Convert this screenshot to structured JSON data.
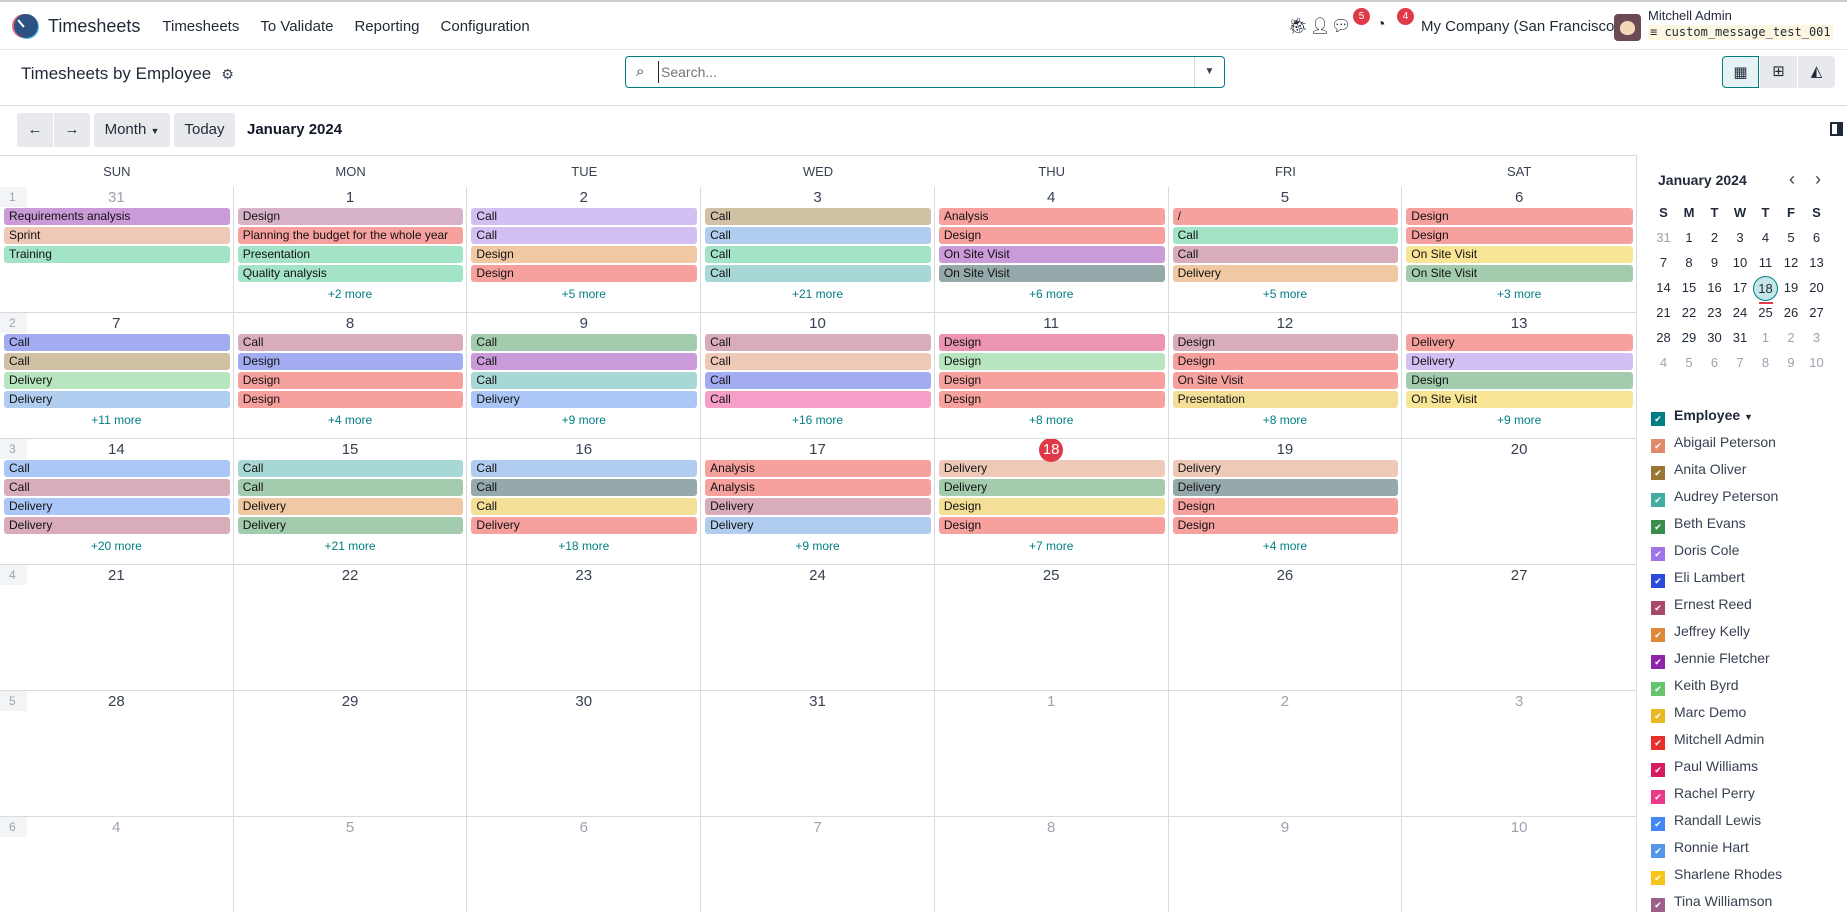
{
  "nav": {
    "brand": "Timesheets",
    "menu": [
      "Timesheets",
      "To Validate",
      "Reporting",
      "Configuration"
    ],
    "messages_badge": "5",
    "activity_badge": "4",
    "company": "My Company (San Francisco)",
    "user": "Mitchell Admin",
    "database": "custom_message_test_001"
  },
  "control": {
    "title": "Timesheets by Employee",
    "search_placeholder": "Search...",
    "views": [
      "calendar-icon",
      "pivot-icon",
      "graph-icon"
    ],
    "active_view": "calendar"
  },
  "toolbar": {
    "prev": "←",
    "next": "→",
    "scale": "Month",
    "today": "Today",
    "range": "January 2024"
  },
  "calendar": {
    "day_names": [
      "SUN",
      "MON",
      "TUE",
      "WED",
      "THU",
      "FRI",
      "SAT"
    ],
    "today": "18",
    "weeks": [
      {
        "num": "1",
        "days": [
          {
            "d": "31",
            "other": true,
            "events": [
              [
                "Requirements analysis",
                "#cb9ad8"
              ],
              [
                "Sprint",
                "#efc9b8"
              ],
              [
                "Training",
                "#a3e4c7"
              ]
            ],
            "more": ""
          },
          {
            "d": "1",
            "events": [
              [
                "Design",
                "#d7b3c7"
              ],
              [
                "Planning the budget for the whole year",
                "#f7a19f"
              ],
              [
                "Presentation",
                "#a3e4c7"
              ],
              [
                "Quality analysis",
                "#a3e4c7"
              ]
            ],
            "more": "+2 more"
          },
          {
            "d": "2",
            "events": [
              [
                "Call",
                "#d2c0f2"
              ],
              [
                "Call",
                "#d2c0f2"
              ],
              [
                "Design",
                "#f0c8a3"
              ],
              [
                "Design",
                "#f7a19f"
              ]
            ],
            "more": "+5 more"
          },
          {
            "d": "3",
            "events": [
              [
                "Call",
                "#d0c0a4"
              ],
              [
                "Call",
                "#b0cdef"
              ],
              [
                "Call",
                "#a3e4c7"
              ],
              [
                "Call",
                "#a8d8d5"
              ]
            ],
            "more": "+21 more"
          },
          {
            "d": "4",
            "events": [
              [
                "Analysis",
                "#f7a19f"
              ],
              [
                "Design",
                "#f7a19f"
              ],
              [
                "On Site Visit",
                "#cb9ad8"
              ],
              [
                "On Site Visit",
                "#95a8aa"
              ]
            ],
            "more": "+6 more"
          },
          {
            "d": "5",
            "events": [
              [
                "/",
                "#f7a19f"
              ],
              [
                "Call",
                "#a3e4c7"
              ],
              [
                "Call",
                "#d8adb9"
              ],
              [
                "Delivery",
                "#f0c8a3"
              ]
            ],
            "more": "+5 more"
          },
          {
            "d": "6",
            "events": [
              [
                "Design",
                "#f7a19f"
              ],
              [
                "Design",
                "#f7a19f"
              ],
              [
                "On Site Visit",
                "#f8e596"
              ],
              [
                "On Site Visit",
                "#a3ccae"
              ]
            ],
            "more": "+3 more"
          }
        ]
      },
      {
        "num": "2",
        "days": [
          {
            "d": "7",
            "events": [
              [
                "Call",
                "#a3acf0"
              ],
              [
                "Call",
                "#d0c0a4"
              ],
              [
                "Delivery",
                "#b6e5bf"
              ],
              [
                "Delivery",
                "#b0cdef"
              ]
            ],
            "more": "+11 more"
          },
          {
            "d": "8",
            "events": [
              [
                "Call",
                "#d8adb9"
              ],
              [
                "Design",
                "#a3acf0"
              ],
              [
                "Design",
                "#f7a19f"
              ],
              [
                "Design",
                "#f7a19f"
              ]
            ],
            "more": "+4 more"
          },
          {
            "d": "9",
            "events": [
              [
                "Call",
                "#a3ccae"
              ],
              [
                "Call",
                "#cb9ad8"
              ],
              [
                "Call",
                "#a8d8d5"
              ],
              [
                "Delivery",
                "#aac7f7"
              ]
            ],
            "more": "+9 more"
          },
          {
            "d": "10",
            "events": [
              [
                "Call",
                "#d8adb9"
              ],
              [
                "Call",
                "#efc9b8"
              ],
              [
                "Call",
                "#a3acf0"
              ],
              [
                "Call",
                "#f59fc8"
              ]
            ],
            "more": "+16 more"
          },
          {
            "d": "11",
            "events": [
              [
                "Design",
                "#ec94b4"
              ],
              [
                "Design",
                "#b6e5bf"
              ],
              [
                "Design",
                "#f7a19f"
              ],
              [
                "Design",
                "#f7a19f"
              ]
            ],
            "more": "+8 more"
          },
          {
            "d": "12",
            "events": [
              [
                "Design",
                "#d8adb9"
              ],
              [
                "Design",
                "#f7a19f"
              ],
              [
                "On Site Visit",
                "#f7a19f"
              ],
              [
                "Presentation",
                "#f4df96"
              ]
            ],
            "more": "+8 more"
          },
          {
            "d": "13",
            "events": [
              [
                "Delivery",
                "#f7a19f"
              ],
              [
                "Delivery",
                "#d2c0f2"
              ],
              [
                "Design",
                "#a3ccae"
              ],
              [
                "On Site Visit",
                "#f8e596"
              ]
            ],
            "more": "+9 more"
          }
        ]
      },
      {
        "num": "3",
        "days": [
          {
            "d": "14",
            "events": [
              [
                "Call",
                "#aac7f7"
              ],
              [
                "Call",
                "#d8adb9"
              ],
              [
                "Delivery",
                "#aac7f7"
              ],
              [
                "Delivery",
                "#d8adb9"
              ]
            ],
            "more": "+20 more"
          },
          {
            "d": "15",
            "events": [
              [
                "Call",
                "#a8d8d5"
              ],
              [
                "Call",
                "#a3ccae"
              ],
              [
                "Delivery",
                "#f0c8a3"
              ],
              [
                "Delivery",
                "#a3ccae"
              ]
            ],
            "more": "+21 more"
          },
          {
            "d": "16",
            "events": [
              [
                "Call",
                "#b0cdef"
              ],
              [
                "Call",
                "#95a8aa"
              ],
              [
                "Call",
                "#f4df96"
              ],
              [
                "Delivery",
                "#f7a19f"
              ]
            ],
            "more": "+18 more"
          },
          {
            "d": "17",
            "events": [
              [
                "Analysis",
                "#f7a19f"
              ],
              [
                "Analysis",
                "#f7a19f"
              ],
              [
                "Delivery",
                "#d8adb9"
              ],
              [
                "Delivery",
                "#b0cdef"
              ]
            ],
            "more": "+9 more"
          },
          {
            "d": "18",
            "events": [
              [
                "Delivery",
                "#efc9b8"
              ],
              [
                "Delivery",
                "#a3ccae"
              ],
              [
                "Design",
                "#f4df96"
              ],
              [
                "Design",
                "#f7a19f"
              ]
            ],
            "more": "+7 more"
          },
          {
            "d": "19",
            "events": [
              [
                "Delivery",
                "#efc9b8"
              ],
              [
                "Delivery",
                "#95a8aa"
              ],
              [
                "Design",
                "#f7a19f"
              ],
              [
                "Design",
                "#f7a19f"
              ]
            ],
            "more": "+4 more"
          },
          {
            "d": "20",
            "events": [],
            "more": ""
          }
        ]
      },
      {
        "num": "4",
        "days": [
          {
            "d": "21",
            "events": []
          },
          {
            "d": "22",
            "events": []
          },
          {
            "d": "23",
            "events": []
          },
          {
            "d": "24",
            "events": []
          },
          {
            "d": "25",
            "events": []
          },
          {
            "d": "26",
            "events": []
          },
          {
            "d": "27",
            "events": []
          }
        ]
      },
      {
        "num": "5",
        "days": [
          {
            "d": "28",
            "events": []
          },
          {
            "d": "29",
            "events": []
          },
          {
            "d": "30",
            "events": []
          },
          {
            "d": "31",
            "events": []
          },
          {
            "d": "1",
            "other": true,
            "events": []
          },
          {
            "d": "2",
            "other": true,
            "events": []
          },
          {
            "d": "3",
            "other": true,
            "events": []
          }
        ]
      },
      {
        "num": "6",
        "days": [
          {
            "d": "4",
            "other": true,
            "events": []
          },
          {
            "d": "5",
            "other": true,
            "events": []
          },
          {
            "d": "6",
            "other": true,
            "events": []
          },
          {
            "d": "7",
            "other": true,
            "events": []
          },
          {
            "d": "8",
            "other": true,
            "events": []
          },
          {
            "d": "9",
            "other": true,
            "events": []
          },
          {
            "d": "10",
            "other": true,
            "events": []
          }
        ]
      }
    ]
  },
  "sidebar": {
    "mini_title": "January 2024",
    "mini_heads": [
      "S",
      "M",
      "T",
      "W",
      "T",
      "F",
      "S"
    ],
    "mini_weeks": [
      [
        "31",
        "1",
        "2",
        "3",
        "4",
        "5",
        "6"
      ],
      [
        "7",
        "8",
        "9",
        "10",
        "11",
        "12",
        "13"
      ],
      [
        "14",
        "15",
        "16",
        "17",
        "18",
        "19",
        "20"
      ],
      [
        "21",
        "22",
        "23",
        "24",
        "25",
        "26",
        "27"
      ],
      [
        "28",
        "29",
        "30",
        "31",
        "1",
        "2",
        "3"
      ],
      [
        "4",
        "5",
        "6",
        "7",
        "8",
        "9",
        "10"
      ]
    ],
    "filter_title": "Employee",
    "filter_color": "#017e84",
    "employees": [
      [
        "Abigail Peterson",
        "#e08a6b"
      ],
      [
        "Anita Oliver",
        "#9b7536"
      ],
      [
        "Audrey Peterson",
        "#42ada0"
      ],
      [
        "Beth Evans",
        "#3a8e4b"
      ],
      [
        "Doris Cole",
        "#9f74e8"
      ],
      [
        "Eli Lambert",
        "#2a4be0"
      ],
      [
        "Ernest Reed",
        "#a8486a"
      ],
      [
        "Jeffrey Kelly",
        "#e0883a"
      ],
      [
        "Jennie Fletcher",
        "#8e24aa"
      ],
      [
        "Keith Byrd",
        "#66c46e"
      ],
      [
        "Marc Demo",
        "#e8b820"
      ],
      [
        "Mitchell Admin",
        "#e8302a"
      ],
      [
        "Paul Williams",
        "#d81b60"
      ],
      [
        "Rachel Perry",
        "#ec3a8a"
      ],
      [
        "Randall Lewis",
        "#4285f4"
      ],
      [
        "Ronnie Hart",
        "#5596e6"
      ],
      [
        "Sharlene Rhodes",
        "#f5c518"
      ],
      [
        "Tina Williamson",
        "#9d5f8a"
      ]
    ]
  }
}
